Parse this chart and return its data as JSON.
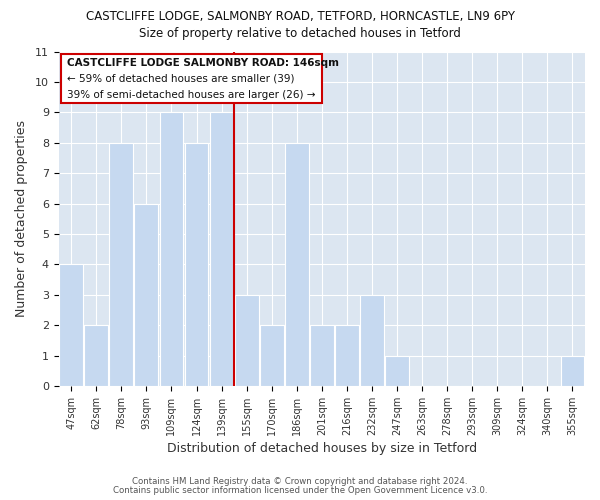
{
  "title1": "CASTCLIFFE LODGE, SALMONBY ROAD, TETFORD, HORNCASTLE, LN9 6PY",
  "title2": "Size of property relative to detached houses in Tetford",
  "xlabel": "Distribution of detached houses by size in Tetford",
  "ylabel": "Number of detached properties",
  "bar_labels": [
    "47sqm",
    "62sqm",
    "78sqm",
    "93sqm",
    "109sqm",
    "124sqm",
    "139sqm",
    "155sqm",
    "170sqm",
    "186sqm",
    "201sqm",
    "216sqm",
    "232sqm",
    "247sqm",
    "263sqm",
    "278sqm",
    "293sqm",
    "309sqm",
    "324sqm",
    "340sqm",
    "355sqm"
  ],
  "bar_heights": [
    4,
    2,
    8,
    6,
    9,
    8,
    9,
    3,
    2,
    8,
    2,
    2,
    3,
    1,
    0,
    0,
    0,
    0,
    0,
    0,
    1
  ],
  "bar_color": "#c6d9f0",
  "bar_edge_color": "white",
  "grid_color": "#ffffff",
  "bg_color": "#dce6f1",
  "fig_bg": "#ffffff",
  "ylim": [
    0,
    11
  ],
  "yticks": [
    0,
    1,
    2,
    3,
    4,
    5,
    6,
    7,
    8,
    9,
    10,
    11
  ],
  "marker_color": "#cc0000",
  "annotation_title": "CASTCLIFFE LODGE SALMONBY ROAD: 146sqm",
  "annotation_line1": "← 59% of detached houses are smaller (39)",
  "annotation_line2": "39% of semi-detached houses are larger (26) →",
  "footer1": "Contains HM Land Registry data © Crown copyright and database right 2024.",
  "footer2": "Contains public sector information licensed under the Open Government Licence v3.0."
}
